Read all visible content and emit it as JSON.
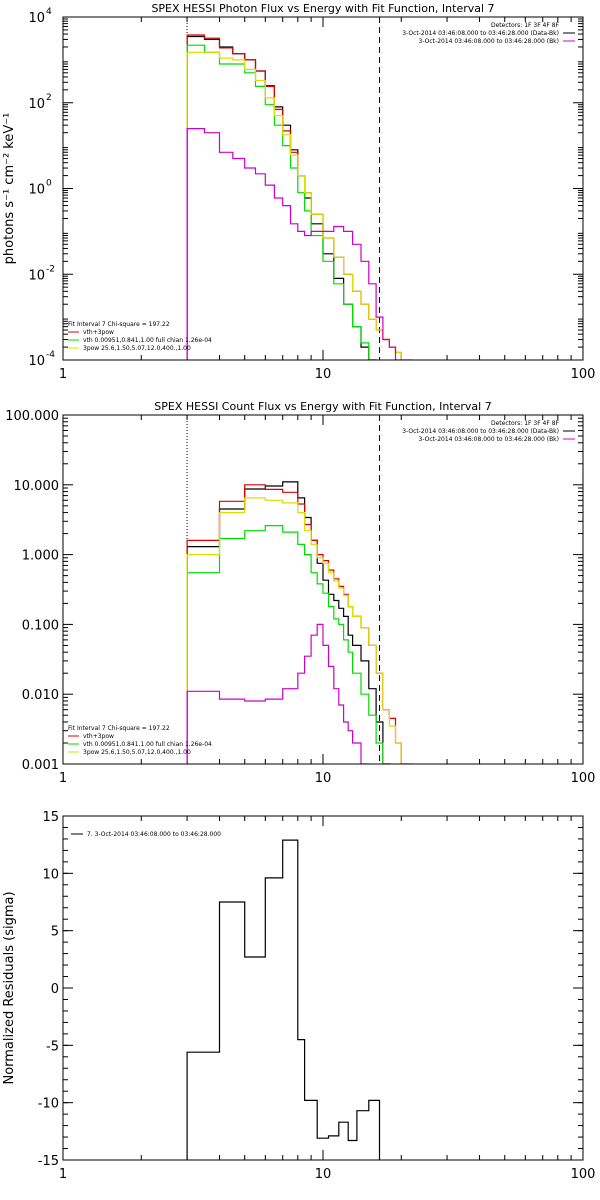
{
  "chart_data": [
    {
      "type": "line",
      "title": "SPEX HESSI Photon Flux vs Energy with Fit Function, Interval 7",
      "ylabel": "photons s⁻¹ cm⁻² keV⁻¹",
      "xlabel": "",
      "xscale": "log",
      "yscale": "log",
      "xlim": [
        1,
        100
      ],
      "ylim": [
        0.0001,
        10000
      ],
      "xticks": [
        1,
        10,
        100
      ],
      "xtick_labels": [
        "1",
        "10",
        "100"
      ],
      "yticks": [
        0.0001,
        0.01,
        1,
        100,
        10000
      ],
      "ytick_labels": [
        [
          "10",
          "-4"
        ],
        [
          "10",
          "-2"
        ],
        [
          "10",
          "0"
        ],
        [
          "10",
          "2"
        ],
        [
          "10",
          "4"
        ]
      ],
      "vlines": [
        {
          "x": 3,
          "style": "dotted"
        },
        {
          "x": 16.5,
          "style": "dashed"
        }
      ],
      "legend_top_right": {
        "lines": [
          "Detectors: 1F 3F 4F 8F",
          "3-Oct-2014 03:46:08.000 to 03:46:28.000 (Data-Bk)",
          "3-Oct-2014 03:46:08.000 to 03:46:28.000 (Bk)"
        ],
        "colors": [
          "#000000",
          "#000000",
          "#cc00cc"
        ]
      },
      "legend_bottom_left": {
        "lines": [
          "Fit Interval 7   Chi-square = 197.22",
          "vth+3pow",
          "vth 0.00951,0.841,1.00   full chian 1.26e-04",
          "3pow 25.6,1.50,5.07,12.0,400.,1.00"
        ],
        "colors": [
          "#000000",
          "#dd0000",
          "#00dd00",
          "#dddd00"
        ]
      },
      "edges": [
        3,
        3.5,
        4,
        4.5,
        5,
        5.5,
        6,
        6.5,
        7,
        7.5,
        8,
        8.5,
        9,
        10,
        11,
        12,
        13,
        14,
        15,
        16,
        17,
        18,
        19,
        20,
        22,
        25
      ],
      "series": [
        {
          "color": "#000000",
          "values": [
            3500,
            3000,
            2000,
            1400,
            1000,
            550,
            250,
            80,
            30,
            8,
            2,
            0.6,
            0.15,
            0.03,
            0.008,
            0.002,
            0.0006,
            0.0002,
            0.0001,
            null,
            null,
            null,
            null,
            null,
            null
          ]
        },
        {
          "color": "#dd0000",
          "values": [
            3800,
            3200,
            1900,
            1400,
            1000,
            550,
            240,
            70,
            22,
            7,
            2,
            0.8,
            0.25,
            0.07,
            0.025,
            0.01,
            0.004,
            0.002,
            0.0009,
            0.0005,
            0.0003,
            0.0002,
            0.00015,
            0.0001,
            null
          ]
        },
        {
          "color": "#00dd00",
          "values": [
            2200,
            1500,
            800,
            800,
            500,
            240,
            90,
            30,
            10,
            3,
            0.8,
            0.3,
            0.08,
            0.02,
            0.006,
            0.002,
            0.0006,
            0.00025,
            0.0001,
            null,
            null,
            null,
            null,
            null,
            null
          ]
        },
        {
          "color": "#dddd00",
          "values": [
            1500,
            1500,
            1100,
            1000,
            600,
            330,
            130,
            50,
            18,
            6,
            2,
            0.8,
            0.25,
            0.07,
            0.025,
            0.01,
            0.004,
            0.002,
            0.0009,
            0.0005,
            0.0003,
            0.0002,
            0.00015,
            0.0001,
            null
          ]
        },
        {
          "color": "#cc00cc",
          "values": [
            25,
            20,
            7,
            5,
            3,
            2.2,
            1.2,
            0.6,
            0.4,
            0.15,
            0.1,
            0.08,
            0.1,
            0.1,
            0.13,
            0.1,
            0.05,
            0.02,
            0.006,
            0.001,
            0.0003,
            0.0002,
            0.0001,
            null,
            null
          ]
        }
      ]
    },
    {
      "type": "line",
      "title": "SPEX HESSI Count Flux vs Energy with Fit Function, Interval 7",
      "ylabel": "",
      "xlabel": "",
      "xscale": "log",
      "yscale": "log",
      "xlim": [
        1,
        100
      ],
      "ylim": [
        0.001,
        100
      ],
      "xticks": [
        1,
        10,
        100
      ],
      "xtick_labels": [
        "1",
        "10",
        "100"
      ],
      "yticks": [
        0.001,
        0.01,
        0.1,
        1,
        10,
        100
      ],
      "ytick_labels": [
        [
          "0.001"
        ],
        [
          "0.010"
        ],
        [
          "0.100"
        ],
        [
          "1.000"
        ],
        [
          "10.000"
        ],
        [
          "100.000"
        ]
      ],
      "vlines": [
        {
          "x": 3,
          "style": "dotted"
        },
        {
          "x": 16.5,
          "style": "dashed"
        }
      ],
      "legend_top_right": {
        "lines": [
          "Detectors: 1F 3F 4F 8F",
          "3-Oct-2014 03:46:08.000 to 03:46:28.000 (Data-Bk)",
          "3-Oct-2014 03:46:08.000 to 03:46:28.000 (Bk)"
        ],
        "colors": [
          "#000000",
          "#000000",
          "#cc00cc"
        ]
      },
      "legend_bottom_left": {
        "lines": [
          "Fit Interval 7   Chi-square = 197.22",
          "vth+3pow",
          "vth 0.00951,0.841,1.00   full chian 1.26e-04",
          "3pow 25.6,1.50,5.07,12.0,400.,1.00"
        ],
        "colors": [
          "#000000",
          "#dd0000",
          "#00dd00",
          "#dddd00"
        ]
      },
      "edges": [
        3,
        4,
        5,
        6,
        7,
        8,
        8.5,
        9,
        9.5,
        10,
        10.5,
        11,
        11.5,
        12,
        12.5,
        13,
        14,
        15,
        16,
        17,
        18,
        19,
        20,
        22
      ],
      "series": [
        {
          "color": "#000000",
          "values": [
            1.3,
            4.5,
            8.7,
            9.6,
            11,
            6.5,
            3.4,
            1.6,
            0.75,
            0.43,
            0.27,
            0.22,
            0.17,
            0.13,
            0.07,
            0.05,
            0.03,
            0.012,
            0.004,
            0.001,
            null,
            null,
            null
          ]
        },
        {
          "color": "#dd0000",
          "values": [
            1.6,
            5.8,
            10,
            8.6,
            7.8,
            5.3,
            2.7,
            1.6,
            1.0,
            0.82,
            0.6,
            0.45,
            0.35,
            0.27,
            0.18,
            0.13,
            0.09,
            0.05,
            0.02,
            0.006,
            0.0045,
            0.002,
            0.001
          ]
        },
        {
          "color": "#00dd00",
          "values": [
            0.55,
            1.7,
            2.2,
            2.6,
            2.1,
            1.4,
            1.0,
            0.55,
            0.38,
            0.28,
            0.18,
            0.12,
            0.1,
            0.06,
            0.04,
            0.02,
            0.01,
            0.005,
            0.002,
            0.001,
            null,
            null,
            null
          ]
        },
        {
          "color": "#dddd00",
          "values": [
            1.0,
            4.0,
            6.5,
            6.0,
            5.5,
            4.0,
            2.2,
            1.4,
            0.9,
            0.75,
            0.55,
            0.42,
            0.33,
            0.26,
            0.18,
            0.13,
            0.09,
            0.05,
            0.02,
            0.006,
            0.0035,
            0.002,
            0.001
          ]
        },
        {
          "color": "#cc00cc",
          "values": [
            0.011,
            0.0085,
            0.008,
            0.0085,
            0.012,
            0.02,
            0.035,
            0.07,
            0.1,
            0.05,
            0.025,
            0.012,
            0.007,
            0.004,
            0.003,
            0.002,
            0.001,
            null,
            null,
            null,
            null,
            null,
            null
          ]
        }
      ]
    },
    {
      "type": "line",
      "title": "",
      "ylabel": "Normalized Residuals (sigma)",
      "xlabel": "",
      "xscale": "log",
      "yscale": "linear",
      "xlim": [
        1,
        100
      ],
      "ylim": [
        -15,
        15
      ],
      "xticks": [
        1,
        10,
        100
      ],
      "xtick_labels": [
        "1",
        "10",
        "100"
      ],
      "yticks": [
        -15,
        -10,
        -5,
        0,
        5,
        10,
        15
      ],
      "ytick_labels": [
        [
          "-15"
        ],
        [
          "-10"
        ],
        [
          "-5"
        ],
        [
          "0"
        ],
        [
          "5"
        ],
        [
          "10"
        ],
        [
          "15"
        ]
      ],
      "vlines": [],
      "legend_top_left": {
        "lines": [
          "7.  3-Oct-2014 03:46:08.000 to 03:46:28.000"
        ],
        "colors": [
          "#000000"
        ]
      },
      "edges": [
        3,
        4,
        5,
        6,
        7,
        8,
        8.5,
        9.5,
        10.5,
        11.5,
        12.5,
        13.5,
        15,
        16.5
      ],
      "series": [
        {
          "color": "#000000",
          "values": [
            -5.6,
            7.5,
            2.7,
            9.6,
            12.9,
            -4.5,
            -9.8,
            -13.1,
            -12.9,
            -11.7,
            -13.3,
            -10.7,
            -9.8
          ]
        }
      ]
    }
  ]
}
